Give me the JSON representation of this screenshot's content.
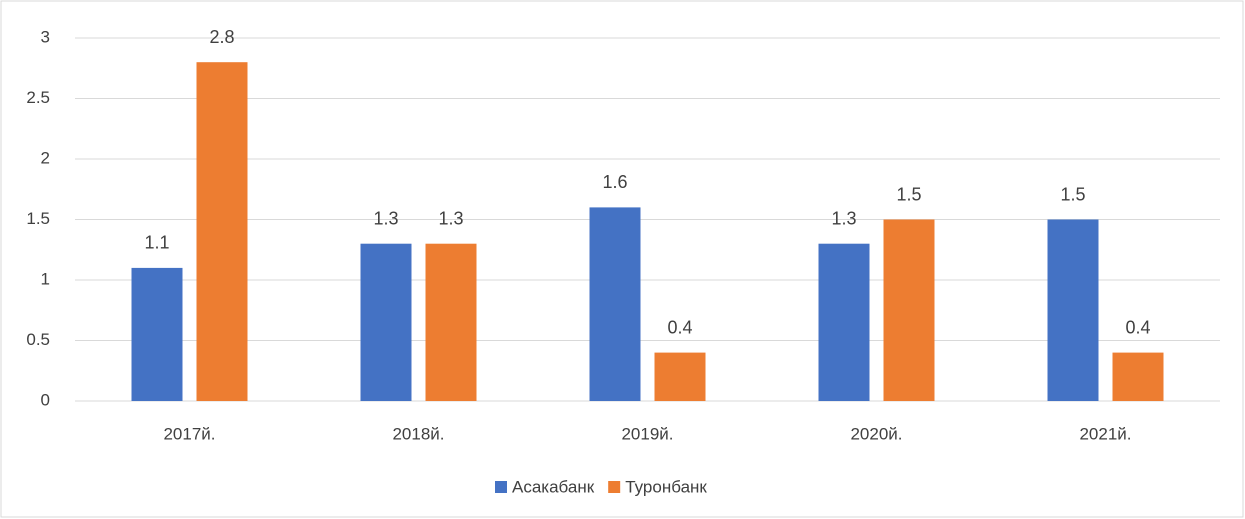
{
  "chart_data": {
    "type": "bar",
    "categories": [
      "2017й.",
      "2018й.",
      "2019й.",
      "2020й.",
      "2021й."
    ],
    "series": [
      {
        "name": "Асакабанк",
        "color": "#4472c4",
        "values": [
          1.1,
          1.3,
          1.6,
          1.3,
          1.5
        ]
      },
      {
        "name": "Туронбанк",
        "color": "#ed7d31",
        "values": [
          2.8,
          1.3,
          0.4,
          1.5,
          0.4
        ]
      }
    ],
    "ylim": [
      0,
      3
    ],
    "yticks": [
      0,
      0.5,
      1,
      1.5,
      2,
      2.5,
      3
    ],
    "grid": true,
    "legend": "bottom"
  }
}
